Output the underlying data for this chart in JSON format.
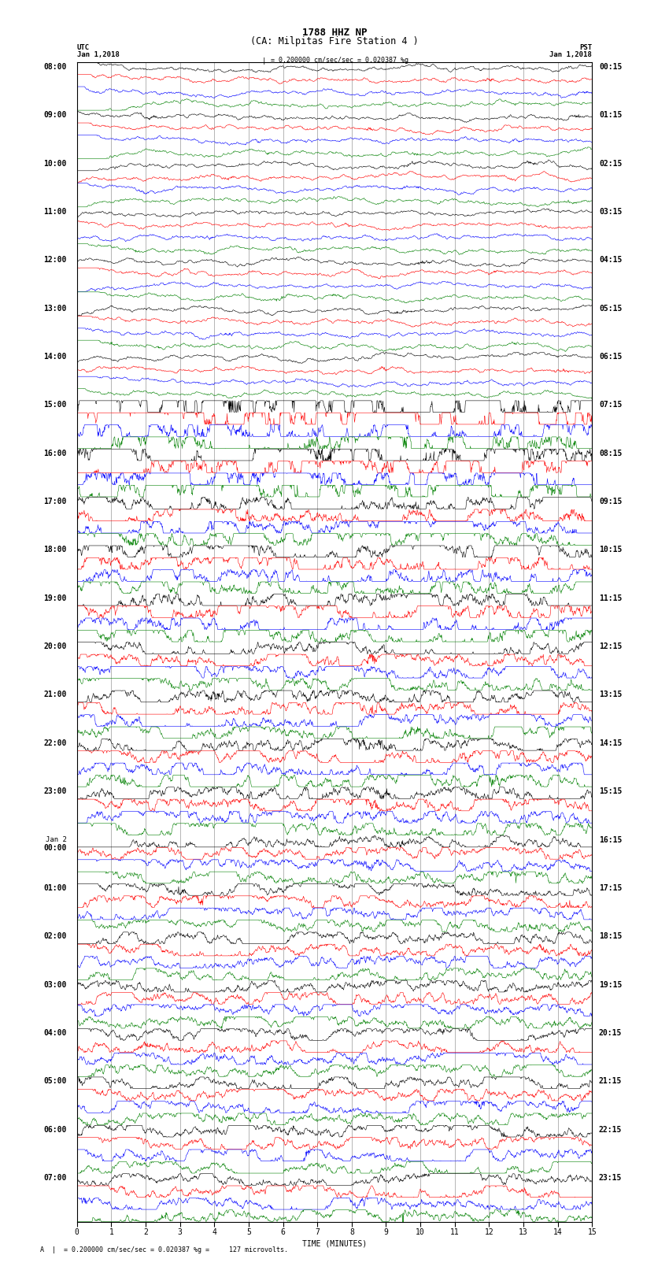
{
  "title_line1": "1788 HHZ NP",
  "title_line2": "(CA: Milpitas Fire Station 4 )",
  "scale_text": "= 0.200000 cm/sec/sec = 0.020387 %g",
  "footer_text": "A  |  = 0.200000 cm/sec/sec = 0.020387 %g =     127 microvolts.",
  "utc_label": "UTC",
  "utc_date": "Jan 1,2018",
  "pst_label": "PST",
  "pst_date": "Jan 1,2018",
  "xlabel": "TIME (MINUTES)",
  "left_times": [
    "08:00",
    "09:00",
    "10:00",
    "11:00",
    "12:00",
    "13:00",
    "14:00",
    "15:00",
    "16:00",
    "17:00",
    "18:00",
    "19:00",
    "20:00",
    "21:00",
    "22:00",
    "23:00",
    "Jan 2\n00:00",
    "01:00",
    "02:00",
    "03:00",
    "04:00",
    "05:00",
    "06:00",
    "07:00"
  ],
  "right_times": [
    "00:15",
    "01:15",
    "02:15",
    "03:15",
    "04:15",
    "05:15",
    "06:15",
    "07:15",
    "08:15",
    "09:15",
    "10:15",
    "11:15",
    "12:15",
    "13:15",
    "14:15",
    "15:15",
    "16:15",
    "17:15",
    "18:15",
    "19:15",
    "20:15",
    "21:15",
    "22:15",
    "23:15"
  ],
  "colors_cycle": [
    "black",
    "red",
    "blue",
    "green"
  ],
  "n_rows": 96,
  "total_minutes": 15,
  "background_color": "white",
  "text_color": "black",
  "title_fontsize": 9,
  "label_fontsize": 6.5,
  "tick_fontsize": 7,
  "hour_fontsize": 7
}
